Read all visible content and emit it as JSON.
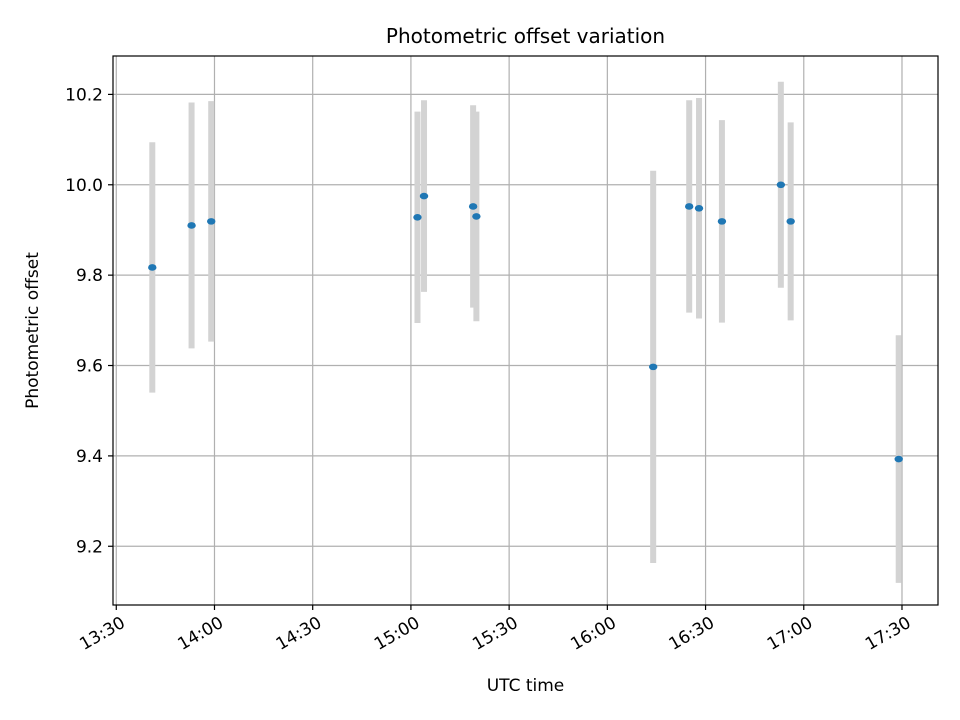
{
  "chart_data": {
    "type": "scatter",
    "title": "Photometric offset variation",
    "xlabel": "UTC time",
    "ylabel": "Photometric offset",
    "x_type": "time",
    "xlim": [
      "13:29",
      "17:41"
    ],
    "ylim": [
      9.07,
      10.285
    ],
    "xticks": [
      "13:30",
      "14:00",
      "14:30",
      "15:00",
      "15:30",
      "16:00",
      "16:30",
      "17:00",
      "17:30"
    ],
    "yticks": [
      9.2,
      9.4,
      9.6,
      9.8,
      10.0,
      10.2
    ],
    "grid": true,
    "series": [
      {
        "marker_color": "#1f77b4",
        "errorbar_color": "#d3d3d3",
        "points": [
          {
            "x": "13:41",
            "y": 9.817,
            "yerr": 0.277
          },
          {
            "x": "13:53",
            "y": 9.91,
            "yerr": 0.272
          },
          {
            "x": "13:59",
            "y": 9.919,
            "yerr": 0.266
          },
          {
            "x": "15:02",
            "y": 9.928,
            "yerr": 0.234
          },
          {
            "x": "15:04",
            "y": 9.975,
            "yerr": 0.212
          },
          {
            "x": "15:19",
            "y": 9.952,
            "yerr": 0.224
          },
          {
            "x": "15:20",
            "y": 9.93,
            "yerr": 0.232
          },
          {
            "x": "16:14",
            "y": 9.597,
            "yerr": 0.434
          },
          {
            "x": "16:25",
            "y": 9.952,
            "yerr": 0.235
          },
          {
            "x": "16:28",
            "y": 9.948,
            "yerr": 0.244
          },
          {
            "x": "16:35",
            "y": 9.919,
            "yerr": 0.224
          },
          {
            "x": "16:53",
            "y": 10.0,
            "yerr": 0.228
          },
          {
            "x": "16:56",
            "y": 9.919,
            "yerr": 0.219
          },
          {
            "x": "17:29",
            "y": 9.393,
            "yerr": 0.274
          }
        ]
      }
    ]
  }
}
